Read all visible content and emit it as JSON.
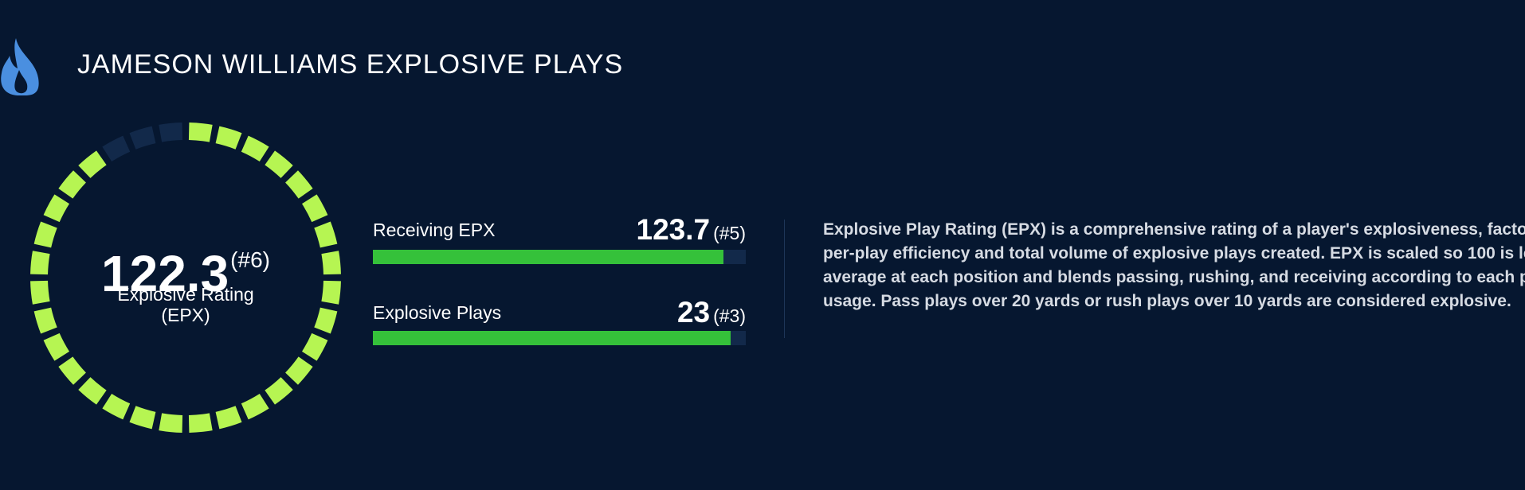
{
  "header": {
    "title": "JAMESON WILLIAMS EXPLOSIVE PLAYS"
  },
  "rating": {
    "value": "122.3",
    "rank": "(#6)",
    "label": "Explosive Rating",
    "sublabel": "(EPX)"
  },
  "metrics": [
    {
      "label": "Receiving EPX",
      "value": "123.7",
      "rank": "(#5)"
    },
    {
      "label": "Explosive Plays",
      "value": "23",
      "rank": "(#3)"
    }
  ],
  "description": "Explosive Play Rating (EPX) is a comprehensive rating of a player's explosiveness, factoring in per-play efficiency and total volume of explosive plays created. EPX is scaled so 100 is league-average at each position and blends passing, rushing, and receiving according to each player's usage. Pass plays over 20 yards or rush plays over 10 yards are considered explosive."
}
